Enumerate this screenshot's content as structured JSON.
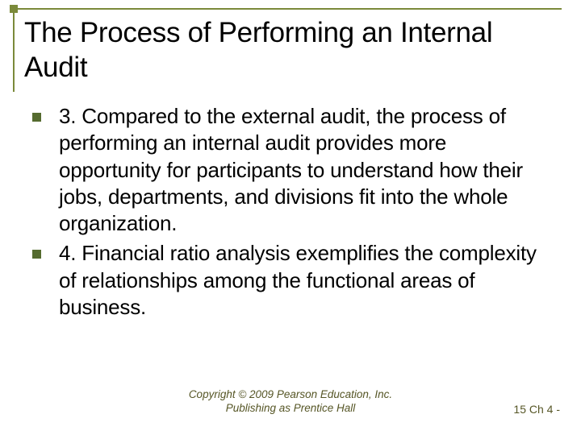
{
  "accent_color": "#7b8a3a",
  "bullet_color": "#556b2f",
  "footer_color": "#565626",
  "text_color": "#000000",
  "background_color": "#ffffff",
  "title": "The Process of Performing an Internal Audit",
  "bullets": [
    "3.  Compared to the external audit, the process of performing an internal audit provides more opportunity for participants to understand how their jobs, departments, and divisions fit into the whole organization.",
    "4.  Financial ratio analysis exemplifies the complexity of relationships among the functional areas of business."
  ],
  "copyright_line1": "Copyright © 2009 Pearson Education, Inc.",
  "copyright_line2": "Publishing as Prentice Hall",
  "page_label": "15 Ch 4 -"
}
